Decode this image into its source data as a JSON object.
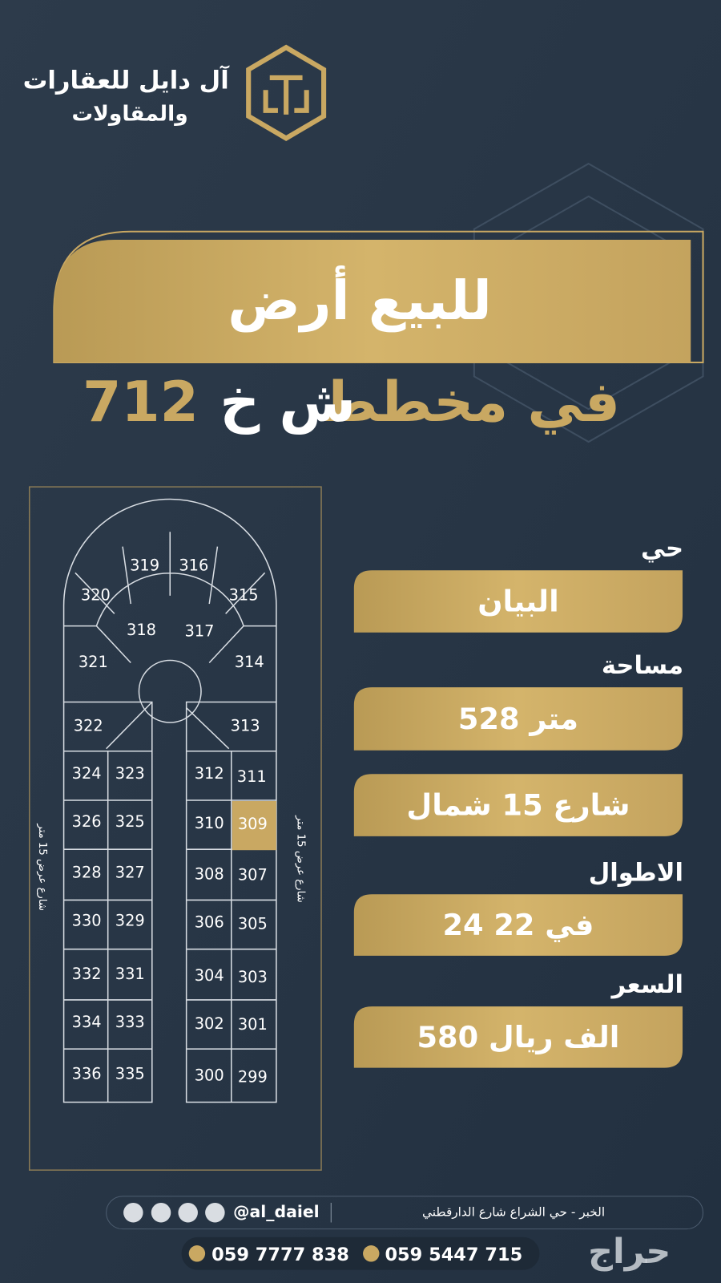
{
  "header": {
    "company_line1": "آل دايل للعقارات",
    "company_line2": "والمقاولات"
  },
  "banner": {
    "title": "للبيع أرض",
    "subtitle": {
      "prefix": "في مخطط",
      "code": "ش خ",
      "number": "712"
    }
  },
  "map": {
    "street_left": "شارع عرض 15 متر",
    "street_right": "شارع عرض 15 متر",
    "lots": [
      "319",
      "316",
      "320",
      "315",
      "318",
      "317",
      "321",
      "314",
      "322",
      "313",
      "324",
      "323",
      "312",
      "311",
      "326",
      "325",
      "310",
      "309",
      "328",
      "327",
      "308",
      "307",
      "330",
      "329",
      "306",
      "305",
      "332",
      "331",
      "304",
      "303",
      "334",
      "333",
      "302",
      "301",
      "336",
      "335",
      "300",
      "299"
    ],
    "highlighted": "309"
  },
  "details": [
    {
      "label": "حي",
      "value": "البيان"
    },
    {
      "label": "مساحة",
      "value": "528 متر"
    },
    {
      "label": null,
      "value": "شارع 15 شمال"
    },
    {
      "label": "الاطوال",
      "value": "24 في 22"
    },
    {
      "label": "السعر",
      "value": "580 الف ريال"
    }
  ],
  "footer": {
    "address": "الخبر - حي الشراع شارع الدارقطني",
    "handle": "@al_daiel",
    "phones": [
      "059 7777 838",
      "059 5447 715"
    ],
    "watermark": "حراج"
  }
}
